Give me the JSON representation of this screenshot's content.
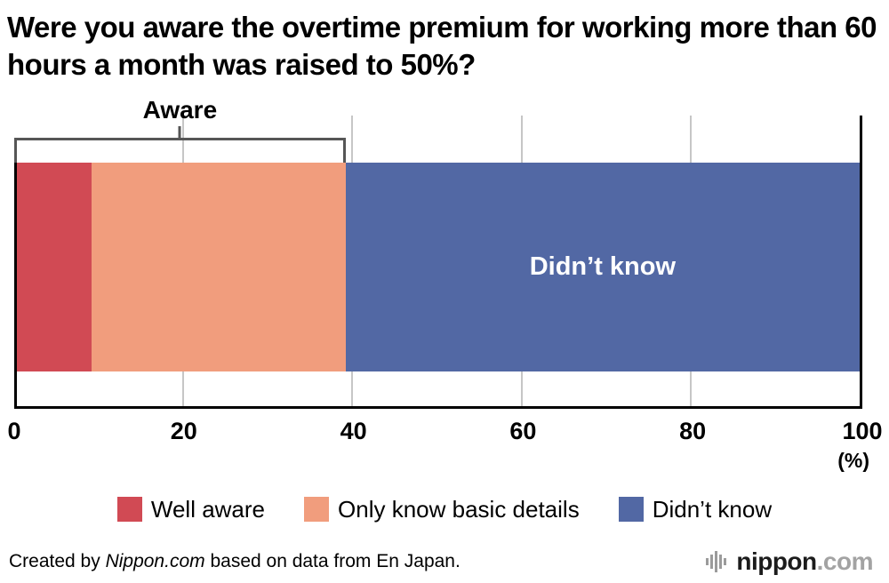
{
  "title": "Were you aware the overtime premium for working more than 60 hours a month was raised to 50%?",
  "chart_data": {
    "type": "bar",
    "orientation": "horizontal",
    "stacked": true,
    "title": "Were you aware the overtime premium for working more than 60 hours a month was raised to 50%?",
    "x_axis": {
      "min": 0,
      "max": 100,
      "ticks": [
        0,
        20,
        40,
        60,
        80,
        100
      ],
      "unit_label": "(%)"
    },
    "grid": true,
    "segments": [
      {
        "label": "Well aware",
        "value": 9.2,
        "color": "#d14a54"
      },
      {
        "label": "Only know basic details",
        "value": 30.0,
        "color": "#f19d7d"
      },
      {
        "label": "Didn’t know",
        "value": 60.8,
        "color": "#5268a4",
        "bar_label": "Didn’t know"
      }
    ],
    "annotation": {
      "label": "Aware",
      "from": 0,
      "to": 39.2
    },
    "legend_position": "bottom"
  },
  "footer": {
    "credit_prefix": "Created by ",
    "credit_brand": "Nippon.com",
    "credit_suffix": " based on data from En Japan.",
    "logo_brand": "nippon",
    "logo_tld": ".com"
  }
}
